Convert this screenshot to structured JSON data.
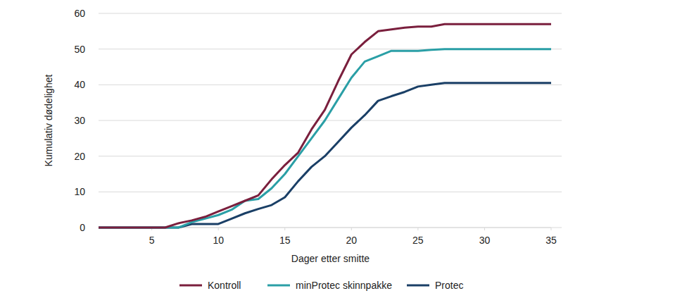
{
  "chart_data": {
    "type": "line",
    "x_label": "Dager etter smitte",
    "y_label": "Kumulativ dødelighet",
    "x": [
      1,
      2,
      3,
      4,
      5,
      6,
      7,
      8,
      9,
      10,
      11,
      12,
      13,
      14,
      15,
      16,
      17,
      18,
      19,
      20,
      21,
      22,
      23,
      24,
      25,
      26,
      27,
      28,
      29,
      30,
      31,
      32,
      33,
      34,
      35
    ],
    "series": [
      {
        "name": "Kontroll",
        "color": "#7a1f3d",
        "values": [
          0,
          0,
          0,
          0,
          0,
          0,
          1.2,
          2,
          3,
          4.5,
          6,
          7.5,
          9,
          13.5,
          17.5,
          21,
          27.5,
          33,
          41,
          48.5,
          52,
          55,
          55.5,
          56,
          56.3,
          56.3,
          57,
          57,
          57,
          57,
          57,
          57,
          57,
          57,
          57
        ]
      },
      {
        "name": "minProtec skinnpakke",
        "color": "#2a9fa6",
        "values": [
          0,
          0,
          0,
          0,
          0,
          0,
          0,
          1.5,
          2.5,
          3.5,
          5,
          7.5,
          8,
          11,
          15,
          20,
          25,
          30,
          36,
          42,
          46.5,
          48,
          49.5,
          49.5,
          49.5,
          49.8,
          50,
          50,
          50,
          50,
          50,
          50,
          50,
          50,
          50
        ]
      },
      {
        "name": "Protec",
        "color": "#1a3f66",
        "values": [
          0,
          0,
          0,
          0,
          0,
          0,
          0,
          1,
          1,
          1,
          2.5,
          4,
          5.2,
          6.3,
          8.5,
          13,
          17,
          20,
          24,
          28,
          31.5,
          35.5,
          36.8,
          38,
          39.5,
          40,
          40.5,
          40.5,
          40.5,
          40.5,
          40.5,
          40.5,
          40.5,
          40.5,
          40.5
        ]
      }
    ],
    "xlim": [
      1,
      35
    ],
    "xticks": [
      5,
      10,
      15,
      20,
      25,
      30,
      35
    ],
    "ylim": [
      0,
      60
    ],
    "yticks": [
      0,
      10,
      20,
      30,
      40,
      50,
      60
    ],
    "grid": true,
    "legend": "bottom"
  }
}
